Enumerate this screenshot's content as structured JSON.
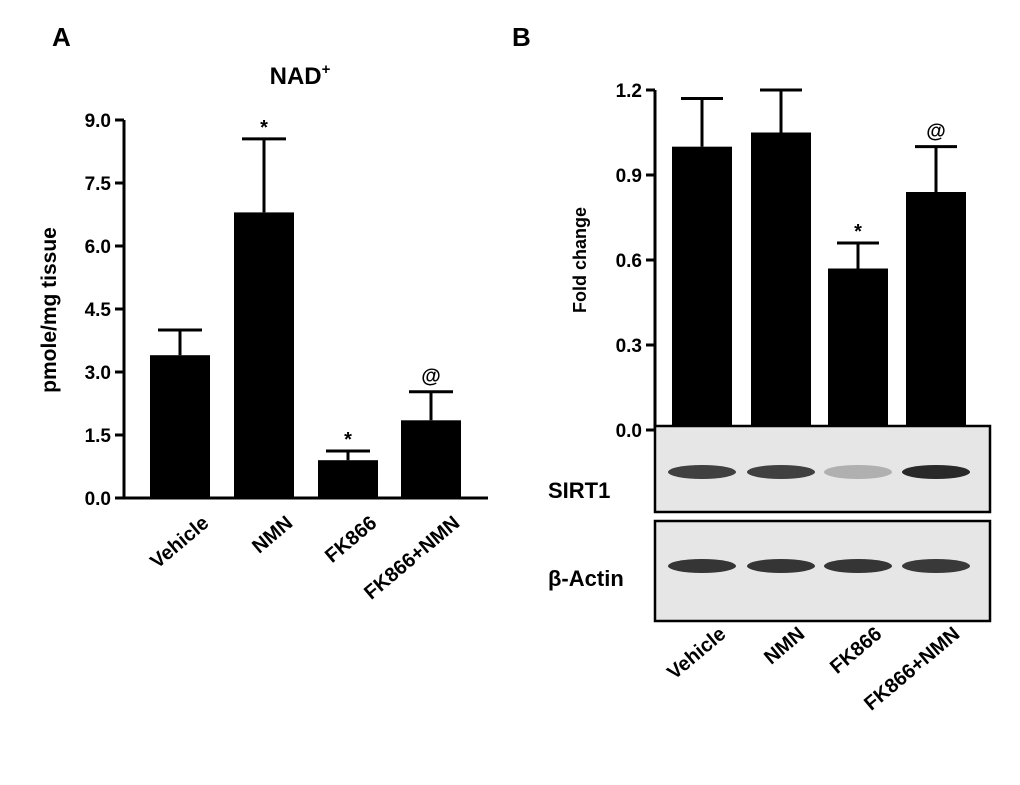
{
  "chart_data": [
    {
      "panel": "A",
      "type": "bar",
      "title": "NAD",
      "title_superscript": "+",
      "xlabel": "",
      "ylabel": "pmole/mg tissue",
      "ylim": [
        0,
        9.0
      ],
      "yticks": [
        "0.0",
        "1.5",
        "3.0",
        "4.5",
        "6.0",
        "7.5",
        "9.0"
      ],
      "categories": [
        "Vehicle",
        "NMN",
        "FK866",
        "FK866+NMN"
      ],
      "values": [
        3.4,
        6.8,
        0.9,
        1.85
      ],
      "errors": [
        0.6,
        1.75,
        0.22,
        0.68
      ],
      "annotations": [
        "",
        "*",
        "*",
        "@"
      ],
      "grid": false,
      "bar_color": "#000000"
    },
    {
      "panel": "B",
      "type": "bar",
      "title": "",
      "xlabel": "",
      "ylabel": "Fold change",
      "ylim": [
        0,
        1.2
      ],
      "yticks": [
        "0.0",
        "0.3",
        "0.6",
        "0.9",
        "1.2"
      ],
      "categories": [
        "Vehicle",
        "NMN",
        "FK866",
        "FK866+NMN"
      ],
      "values": [
        1.0,
        1.05,
        0.57,
        0.84
      ],
      "errors": [
        0.17,
        0.15,
        0.09,
        0.16
      ],
      "annotations": [
        "",
        "",
        "*",
        "@"
      ],
      "grid": false,
      "bar_color": "#000000",
      "blots": [
        {
          "label": "SIRT1",
          "band_intensity": [
            0.85,
            0.85,
            0.35,
            0.95
          ]
        },
        {
          "label": "β-Actin",
          "band_intensity": [
            0.9,
            0.9,
            0.9,
            0.88
          ]
        }
      ]
    }
  ]
}
